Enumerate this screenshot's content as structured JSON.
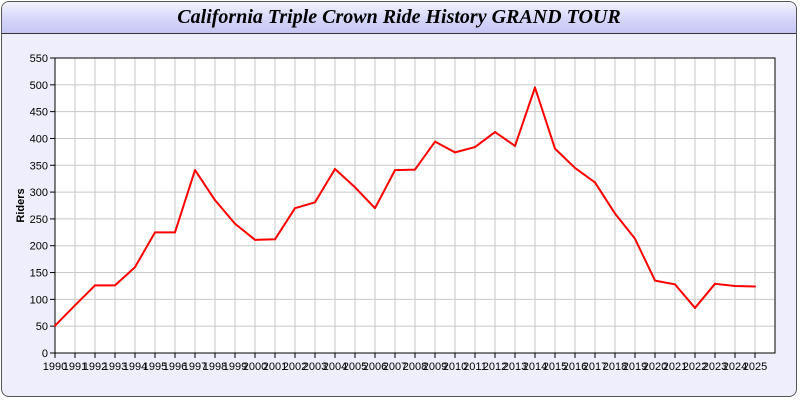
{
  "chart_data": {
    "type": "line",
    "title": "California Triple Crown Ride History GRAND TOUR",
    "xlabel": "",
    "ylabel": "Riders",
    "ylim": [
      0,
      550
    ],
    "yticks": [
      0,
      50,
      100,
      150,
      200,
      250,
      300,
      350,
      400,
      450,
      500,
      550
    ],
    "grid": true,
    "x": [
      1990,
      1991,
      1992,
      1993,
      1994,
      1995,
      1996,
      1997,
      1998,
      1999,
      2000,
      2001,
      2002,
      2003,
      2004,
      2005,
      2006,
      2007,
      2008,
      2009,
      2010,
      2011,
      2012,
      2013,
      2014,
      2015,
      2016,
      2017,
      2018,
      2019,
      2020,
      2021,
      2022,
      2023,
      2024,
      2025
    ],
    "series": [
      {
        "color": "#ff0000",
        "values": [
          51,
          89,
          126,
          126,
          160,
          225,
          225,
          341,
          285,
          241,
          211,
          212,
          270,
          281,
          343,
          309,
          270,
          341,
          342,
          394,
          374,
          384,
          412,
          386,
          495,
          381,
          345,
          318,
          260,
          213,
          135,
          128,
          84,
          129,
          125,
          124
        ]
      }
    ]
  }
}
